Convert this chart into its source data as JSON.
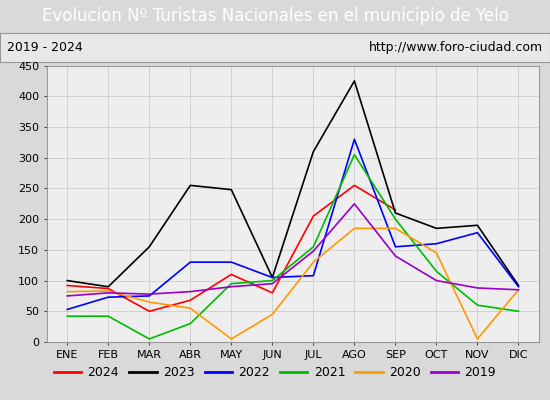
{
  "title": "Evolucion Nº Turistas Nacionales en el municipio de Yelo",
  "subtitle_left": "2019 - 2024",
  "subtitle_right": "http://www.foro-ciudad.com",
  "months": [
    "ENE",
    "FEB",
    "MAR",
    "ABR",
    "MAY",
    "JUN",
    "JUL",
    "AGO",
    "SEP",
    "OCT",
    "NOV",
    "DIC"
  ],
  "ylim": [
    0,
    450
  ],
  "yticks": [
    0,
    50,
    100,
    150,
    200,
    250,
    300,
    350,
    400,
    450
  ],
  "series": {
    "2024": {
      "color": "#ff0000",
      "data": [
        92,
        87,
        50,
        68,
        110,
        80,
        205,
        255,
        215,
        null,
        null,
        null
      ]
    },
    "2023": {
      "color": "#000000",
      "data": [
        100,
        90,
        155,
        255,
        248,
        105,
        310,
        425,
        210,
        185,
        190,
        92
      ]
    },
    "2022": {
      "color": "#0000ff",
      "data": [
        53,
        73,
        75,
        130,
        130,
        105,
        108,
        330,
        155,
        160,
        178,
        90
      ]
    },
    "2021": {
      "color": "#00bb00",
      "data": [
        42,
        42,
        5,
        30,
        95,
        100,
        155,
        305,
        200,
        115,
        60,
        50
      ]
    },
    "2020": {
      "color": "#ff9900",
      "data": [
        82,
        83,
        65,
        55,
        5,
        45,
        130,
        185,
        185,
        145,
        5,
        85
      ]
    },
    "2019": {
      "color": "#9900cc",
      "data": [
        75,
        80,
        78,
        82,
        90,
        95,
        148,
        225,
        140,
        100,
        88,
        85
      ]
    }
  },
  "title_bg_color": "#4472c4",
  "title_color": "#ffffff",
  "subtitle_bg_color": "#e8e8e8",
  "plot_bg_color": "#eeeeee",
  "grid_color": "#cccccc",
  "border_color": "#999999",
  "outer_bg_color": "#d9d9d9",
  "title_fontsize": 12,
  "subtitle_fontsize": 9,
  "axis_fontsize": 8,
  "legend_order": [
    "2024",
    "2023",
    "2022",
    "2021",
    "2020",
    "2019"
  ]
}
